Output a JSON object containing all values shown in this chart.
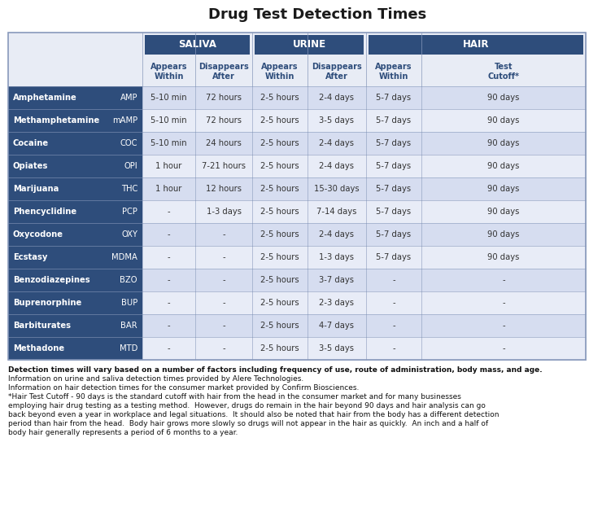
{
  "title": "Drug Test Detection Times",
  "title_fontsize": 13,
  "title_color": "#1a1a1a",
  "header1_labels": [
    "SALIVA",
    "URINE",
    "HAIR"
  ],
  "header2_labels": [
    "Appears\nWithin",
    "Disappears\nAfter",
    "Appears\nWithin",
    "Disappears\nAfter",
    "Appears\nWithin",
    "Test\nCutoff*"
  ],
  "drugs": [
    [
      "Amphetamine",
      "AMP",
      "5-10 min",
      "72 hours",
      "2-5 hours",
      "2-4 days",
      "5-7 days",
      "90 days"
    ],
    [
      "Methamphetamine",
      "mAMP",
      "5-10 min",
      "72 hours",
      "2-5 hours",
      "3-5 days",
      "5-7 days",
      "90 days"
    ],
    [
      "Cocaine",
      "COC",
      "5-10 min",
      "24 hours",
      "2-5 hours",
      "2-4 days",
      "5-7 days",
      "90 days"
    ],
    [
      "Opiates",
      "OPI",
      "1 hour",
      "7-21 hours",
      "2-5 hours",
      "2-4 days",
      "5-7 days",
      "90 days"
    ],
    [
      "Marijuana",
      "THC",
      "1 hour",
      "12 hours",
      "2-5 hours",
      "15-30 days",
      "5-7 days",
      "90 days"
    ],
    [
      "Phencyclidine",
      "PCP",
      "-",
      "1-3 days",
      "2-5 hours",
      "7-14 days",
      "5-7 days",
      "90 days"
    ],
    [
      "Oxycodone",
      "OXY",
      "-",
      "-",
      "2-5 hours",
      "2-4 days",
      "5-7 days",
      "90 days"
    ],
    [
      "Ecstasy",
      "MDMA",
      "-",
      "-",
      "2-5 hours",
      "1-3 days",
      "5-7 days",
      "90 days"
    ],
    [
      "Benzodiazepines",
      "BZO",
      "-",
      "-",
      "2-5 hours",
      "3-7 days",
      "-",
      "-"
    ],
    [
      "Buprenorphine",
      "BUP",
      "-",
      "-",
      "2-5 hours",
      "2-3 days",
      "-",
      "-"
    ],
    [
      "Barbiturates",
      "BAR",
      "-",
      "-",
      "2-5 hours",
      "4-7 days",
      "-",
      "-"
    ],
    [
      "Methadone",
      "MTD",
      "-",
      "-",
      "2-5 hours",
      "3-5 days",
      "-",
      "-"
    ]
  ],
  "header_bg_color": "#2e4d7b",
  "header_text_color": "#ffffff",
  "subheader_text_color": "#2e4d7b",
  "row_bg_odd": "#d6ddf0",
  "row_bg_even": "#e8ecf7",
  "drug_name_bg": "#2e4d7b",
  "drug_name_color": "#ffffff",
  "footnote_bold": "Detection times will vary based on a number of factors including frequency of use, route of administration, body mass, and age.",
  "footnote_line2": "Information on urine and saliva detection times provided by Alere Technologies.",
  "footnote_line3": "Information on hair detection times for the consumer market provided by Confirm Biosciences.",
  "footnote_line4": "*Hair Test Cutoff - 90 days is the standard cutoff with hair from the head in the consumer market and for many businesses",
  "footnote_line5": "employing hair drug testing as a testing method.  However, drugs do remain in the hair beyond 90 days and hair analysis can go",
  "footnote_line6": "back beyond even a year in workplace and legal situations.  It should also be noted that hair from the body has a different detection",
  "footnote_line7": "period than hair from the head.  Body hair grows more slowly so drugs will not appear in the hair as quickly.  An inch and a half of",
  "footnote_line8": "body hair generally represents a period of 6 months to a year.",
  "outer_border_color": "#8899bb",
  "grid_color": "#8899bb",
  "background_color": "#ffffff"
}
